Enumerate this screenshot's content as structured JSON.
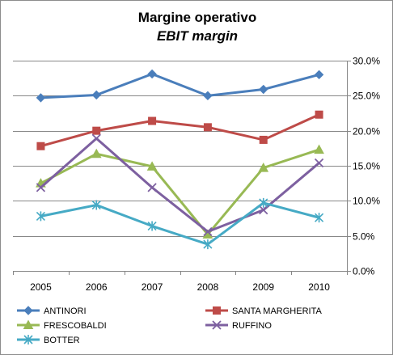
{
  "chart_data": {
    "type": "line",
    "title": "Margine operativo",
    "subtitle": "EBIT margin",
    "x": [
      "2005",
      "2006",
      "2007",
      "2008",
      "2009",
      "2010"
    ],
    "ylim": [
      0,
      30
    ],
    "y_ticks": [
      0,
      5,
      10,
      15,
      20,
      25,
      30
    ],
    "y_tick_labels": [
      "0.0%",
      "5.0%",
      "10.0%",
      "15.0%",
      "20.0%",
      "25.0%",
      "30.0%"
    ],
    "y_axis_side": "right",
    "grid": true,
    "legend_position": "bottom",
    "series": [
      {
        "name": "ANTINORI",
        "color": "#4a7ebb",
        "marker": "diamond",
        "values": [
          24.7,
          25.1,
          28.1,
          25.0,
          25.9,
          28.0
        ]
      },
      {
        "name": "SANTA MARGHERITA",
        "color": "#be4b48",
        "marker": "square",
        "values": [
          17.8,
          20.0,
          21.4,
          20.5,
          18.7,
          22.3
        ]
      },
      {
        "name": "FRESCOBALDI",
        "color": "#98b954",
        "marker": "triangle",
        "values": [
          12.5,
          16.7,
          14.9,
          5.2,
          14.7,
          17.3
        ]
      },
      {
        "name": "RUFFINO",
        "color": "#7d60a0",
        "marker": "x",
        "values": [
          11.9,
          18.9,
          11.9,
          5.6,
          8.7,
          15.4
        ]
      },
      {
        "name": "BOTTER",
        "color": "#46aac5",
        "marker": "star",
        "values": [
          7.8,
          9.4,
          6.4,
          3.8,
          9.7,
          7.6
        ]
      }
    ]
  }
}
